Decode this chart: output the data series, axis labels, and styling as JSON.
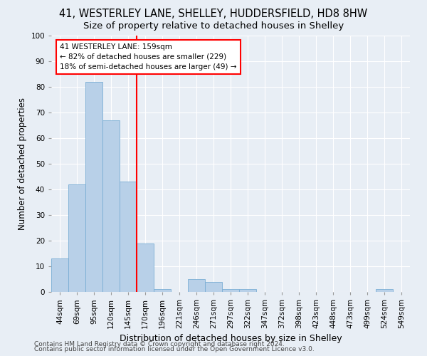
{
  "title1": "41, WESTERLEY LANE, SHELLEY, HUDDERSFIELD, HD8 8HW",
  "title2": "Size of property relative to detached houses in Shelley",
  "xlabel": "Distribution of detached houses by size in Shelley",
  "ylabel": "Number of detached properties",
  "categories": [
    "44sqm",
    "69sqm",
    "95sqm",
    "120sqm",
    "145sqm",
    "170sqm",
    "196sqm",
    "221sqm",
    "246sqm",
    "271sqm",
    "297sqm",
    "322sqm",
    "347sqm",
    "372sqm",
    "398sqm",
    "423sqm",
    "448sqm",
    "473sqm",
    "499sqm",
    "524sqm",
    "549sqm"
  ],
  "values": [
    13,
    42,
    82,
    67,
    43,
    19,
    1,
    0,
    5,
    4,
    1,
    1,
    0,
    0,
    0,
    0,
    0,
    0,
    0,
    1,
    0
  ],
  "bar_color": "#b8d0e8",
  "bar_edge_color": "#7aadd4",
  "vline_index": 5,
  "vline_color": "red",
  "annotation_text": "41 WESTERLEY LANE: 159sqm\n← 82% of detached houses are smaller (229)\n18% of semi-detached houses are larger (49) →",
  "annotation_box_color": "white",
  "annotation_box_edge_color": "red",
  "ylim": [
    0,
    100
  ],
  "yticks": [
    0,
    10,
    20,
    30,
    40,
    50,
    60,
    70,
    80,
    90,
    100
  ],
  "background_color": "#e8eef5",
  "footer1": "Contains HM Land Registry data © Crown copyright and database right 2024.",
  "footer2": "Contains public sector information licensed under the Open Government Licence v3.0.",
  "title1_fontsize": 10.5,
  "title2_fontsize": 9.5,
  "xlabel_fontsize": 9,
  "ylabel_fontsize": 8.5,
  "tick_fontsize": 7.5,
  "footer_fontsize": 6.5
}
